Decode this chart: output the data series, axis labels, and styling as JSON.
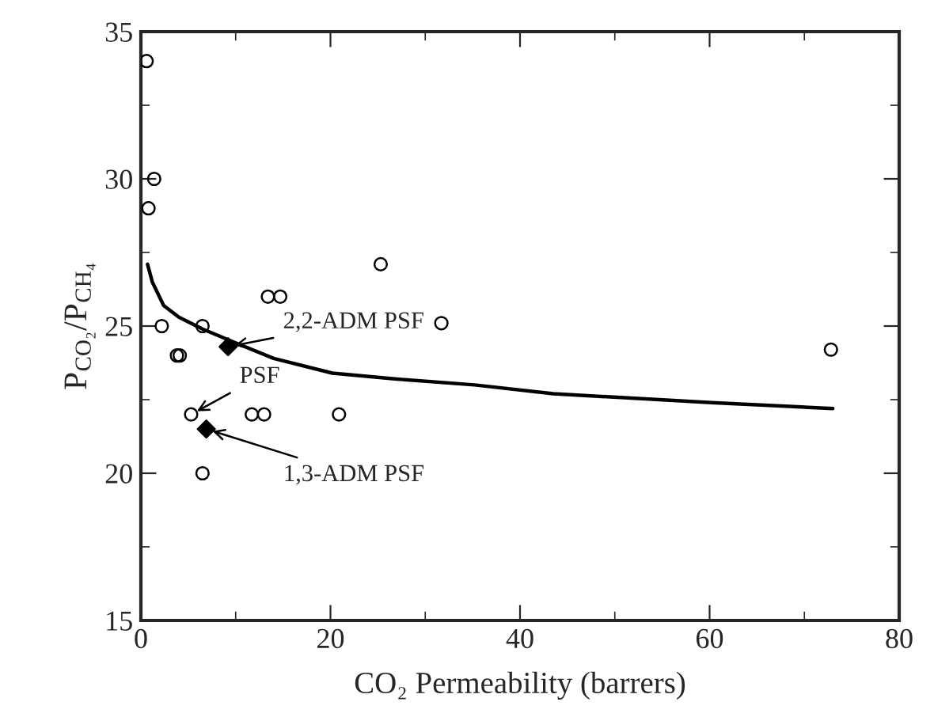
{
  "chart_data": {
    "type": "scatter",
    "xlabel": "CO₂ Permeability (barrers)",
    "ylabel": "P$_{CO₂}$/P$_{CH₄}$",
    "xlim": [
      0,
      80
    ],
    "xticks": [
      0,
      20,
      40,
      60,
      80
    ],
    "ylim": [
      15,
      35
    ],
    "yticks": [
      15,
      20,
      25,
      30,
      35
    ],
    "grid": false,
    "legend": false,
    "series": [
      {
        "marker": "circle",
        "color": "#000000",
        "x": [
          0.6,
          1.4,
          0.8,
          2.2,
          3.8,
          4.1,
          6.5,
          5.3,
          6.5,
          11.7,
          13.0,
          13.4,
          14.7,
          20.9,
          25.3,
          31.7,
          72.8
        ],
        "values": [
          34,
          30,
          29,
          25,
          24,
          24,
          25,
          22,
          20,
          22,
          22,
          26,
          26,
          22,
          27.1,
          25.1,
          24.2
        ]
      },
      {
        "marker": "diamond",
        "color": "#000000",
        "x": [
          6.9,
          9.2
        ],
        "values": [
          21.5,
          24.3
        ]
      },
      {
        "type": "line",
        "marker": "none",
        "line_style": "solid",
        "color": "#000000",
        "x": [
          0.7,
          1.2,
          2.4,
          4,
          6.5,
          10.2,
          14,
          20.2,
          27,
          35.2,
          43.5,
          60.2,
          73
        ],
        "values": [
          27.1,
          26.5,
          25.7,
          25.3,
          24.9,
          24.4,
          23.9,
          23.4,
          23.2,
          23.0,
          22.7,
          22.4,
          22.2
        ]
      }
    ],
    "annotations": [
      {
        "text": "2,2-ADM PSF",
        "x": 9.2,
        "y": 24.3
      },
      {
        "text": "PSF",
        "x": 5.3,
        "y": 22
      },
      {
        "text": "1,3-ADM PSF",
        "x": 6.9,
        "y": 21.5
      }
    ]
  }
}
